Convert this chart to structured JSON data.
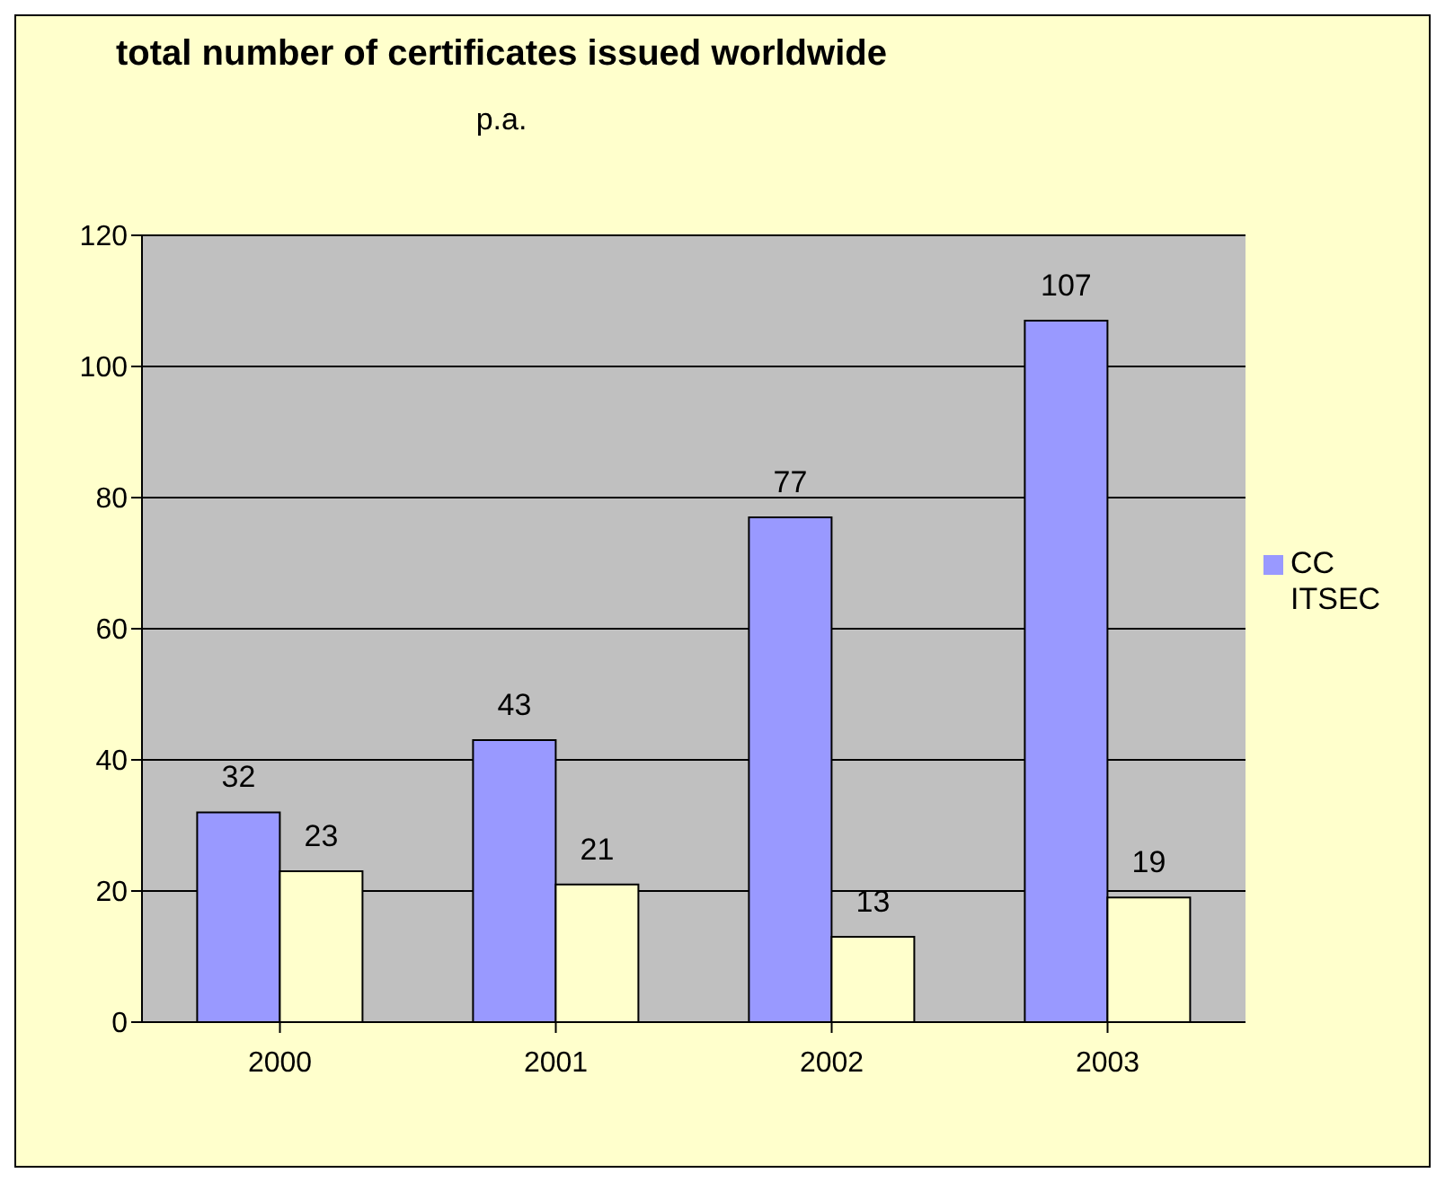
{
  "chart_data": {
    "type": "bar",
    "title": "total number of certificates issued worldwide",
    "subtitle": "p.a.",
    "categories": [
      "2000",
      "2001",
      "2002",
      "2003"
    ],
    "series": [
      {
        "name": "CC",
        "color": "#9999ff",
        "values": [
          32,
          43,
          77,
          107
        ]
      },
      {
        "name": "ITSEC",
        "color": "#ffffcc",
        "values": [
          23,
          21,
          13,
          19
        ]
      }
    ],
    "ylim": [
      0,
      120
    ],
    "yticks": [
      0,
      20,
      40,
      60,
      80,
      100,
      120
    ],
    "grid": "y",
    "legend": "right",
    "data_labels": true
  }
}
